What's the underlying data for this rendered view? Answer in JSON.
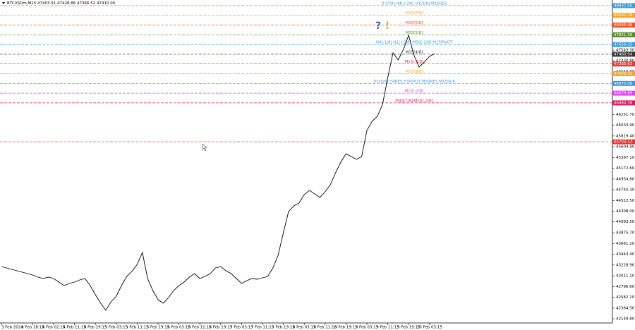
{
  "chart_data": {
    "type": "line",
    "title": "BTCUSDm,M15  47403.51 47428.86 47366.52 47410.00",
    "color": "#000000",
    "icons": [
      "?",
      "!"
    ],
    "categories": [
      "3 Feb 2024",
      null,
      null,
      null,
      null,
      null,
      "3 Feb 18:15",
      null,
      null,
      null,
      "4 Feb 02:15",
      null,
      null,
      null,
      "4 Feb 11:15",
      null,
      null,
      null,
      "4 Feb 19:15",
      null,
      null,
      null,
      "5 Feb 03:15",
      null,
      null,
      null,
      "5 Feb 11:15",
      null,
      null,
      null,
      "5 Feb 19:15",
      null,
      null,
      null,
      "6 Feb 03:15",
      null,
      null,
      null,
      "6 Feb 11:15",
      null,
      null,
      null,
      "6 Feb 19:15",
      null,
      null,
      null,
      "7 Feb 03:15",
      null,
      null,
      null,
      "7 Feb 11:15",
      null,
      null,
      null,
      "7 Feb 19:15",
      null,
      null,
      null,
      "8 Feb 03:15",
      null,
      null,
      null,
      "8 Feb 11:15",
      null,
      null,
      null,
      "8 Feb 19:15",
      null,
      null,
      null,
      "9 Feb 03:15",
      null,
      null,
      null,
      "9 Feb 11:15",
      null,
      null,
      null,
      "9 Feb 19:15",
      null,
      null,
      null,
      "10 Feb 03:15",
      null
    ],
    "values": [
      43198,
      43169,
      43141,
      43113,
      43084,
      43056,
      43028,
      42985,
      42957,
      42985,
      42957,
      42886,
      42815,
      42858,
      42886,
      42929,
      42957,
      42815,
      42631,
      42461,
      42320,
      42490,
      42603,
      42815,
      43000,
      43098,
      43240,
      43481,
      42957,
      42716,
      42532,
      42461,
      42575,
      42716,
      42815,
      42886,
      42985,
      43056,
      42957,
      43000,
      43056,
      43169,
      43198,
      43113,
      43056,
      42957,
      42858,
      42915,
      42957,
      42943,
      42971,
      43000,
      43169,
      43424,
      43877,
      44302,
      44415,
      44472,
      44642,
      44727,
      44656,
      44585,
      44699,
      44840,
      45081,
      45293,
      45463,
      45407,
      45350,
      45407,
      45931,
      46115,
      46214,
      46454,
      46993,
      47488,
      47346,
      47559,
      47842,
      47446,
      47205,
      47304,
      47417,
      47474
    ],
    "ylim": [
      42065,
      48550
    ],
    "yticks": [
      {
        "value": 47543.3,
        "label": "47543.30"
      },
      {
        "value": 47330.8,
        "label": "47330.80"
      },
      {
        "value": 47116.3,
        "label": "47116.30"
      },
      {
        "value": 46251.7,
        "label": "46251.70"
      },
      {
        "value": 46033.9,
        "label": "46033.90"
      },
      {
        "value": 45819.4,
        "label": "45819.40"
      },
      {
        "value": 45604.9,
        "label": "45604.90"
      },
      {
        "value": 45387.1,
        "label": "45387.10"
      },
      {
        "value": 45172.6,
        "label": "45172.60"
      },
      {
        "value": 44954.8,
        "label": "44954.80"
      },
      {
        "value": 44740.3,
        "label": "44740.30"
      },
      {
        "value": 44522.5,
        "label": "44522.50"
      },
      {
        "value": 44308,
        "label": "44308.00"
      },
      {
        "value": 44093.5,
        "label": "44093.50"
      },
      {
        "value": 43875.7,
        "label": "43875.70"
      },
      {
        "value": 43661.2,
        "label": "43661.20"
      },
      {
        "value": 43443.4,
        "label": "43443.40"
      },
      {
        "value": 43228.9,
        "label": "43228.90"
      },
      {
        "value": 43011.1,
        "label": "43011.10"
      },
      {
        "value": 42796.6,
        "label": "42796.60"
      },
      {
        "value": 42582.1,
        "label": "42582.10"
      },
      {
        "value": 42364.3,
        "label": "42364.30"
      },
      {
        "value": 42149.8,
        "label": "42149.80"
      }
    ],
    "levels": [
      {
        "value": 48437.5,
        "label": "48437.50",
        "color": "#3a9bdc",
        "note": "D:[7/8] H4[+3/8] H1[8/8] M15RES"
      },
      {
        "value": 48242.19,
        "label": "48242.19",
        "color": "#f5a623",
        "note": "M15[7/8]"
      },
      {
        "value": 48046.88,
        "label": "48046.88",
        "color": "#f4511e",
        "note": "M15[6/8]"
      },
      {
        "value": 47851.56,
        "label": "47851.56",
        "color": "#558b2f",
        "note": "M15[5/8]"
      },
      {
        "value": 47656.25,
        "label": "47656.25",
        "color": "#3a9bdc",
        "note": "H4[-1/8] H1[+2/8] M30[-2/8] M15PIVOT"
      },
      {
        "value": 47460.94,
        "label": "47460.94",
        "color": "#333333",
        "note": "M15[4/8]"
      },
      {
        "value": 47265.63,
        "label": "47265.63",
        "color": "#e53935",
        "note": "M15[-1/8]"
      },
      {
        "value": 47070.31,
        "label": "47070.31",
        "color": "#f5a623",
        "note": "M15[3/8]"
      },
      {
        "value": 46875,
        "label": "46875.00",
        "color": "#3a9bdc",
        "note": "D1[6/8] H4RES H1PIVOT M30RES M15SUP"
      },
      {
        "value": 46679.69,
        "label": "46679.69",
        "color": "#e040fb",
        "note": "M15[-1/8]"
      },
      {
        "value": 46484.38,
        "label": "46484.38",
        "color": "#d81b60",
        "note": "M30[7/8] M15[-2/8]"
      },
      {
        "value": 45703.13,
        "label": "45703.13",
        "color": "#e53935"
      }
    ]
  }
}
